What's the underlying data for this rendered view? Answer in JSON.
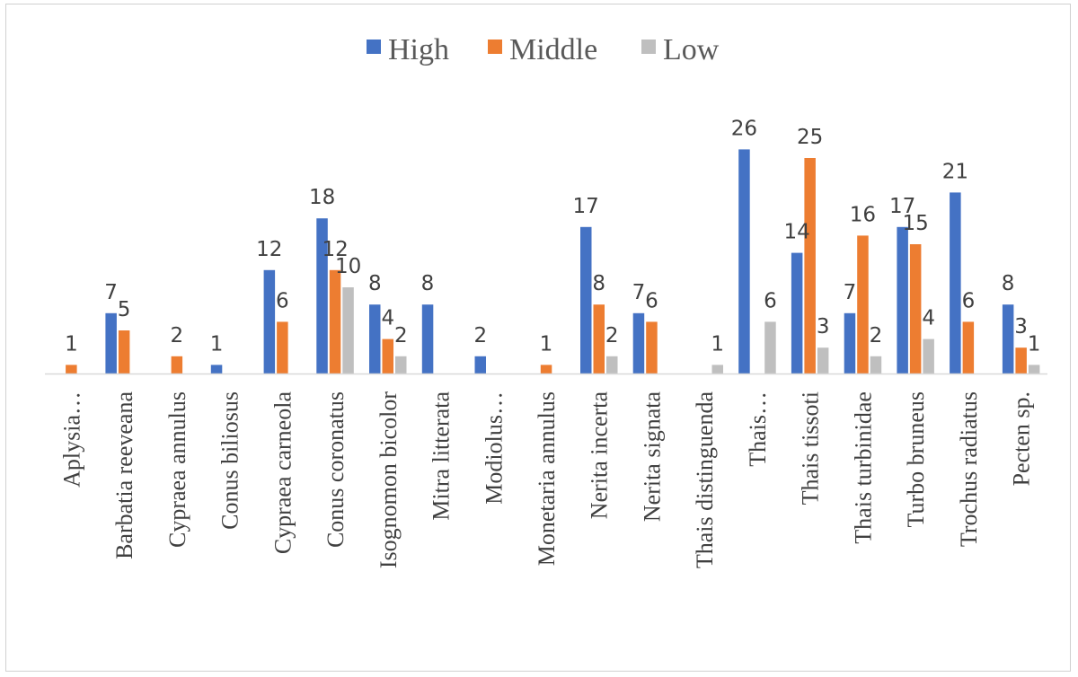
{
  "chart_data": {
    "type": "bar",
    "title": "",
    "xlabel": "",
    "ylabel": "",
    "ylim": [
      0,
      26
    ],
    "grid": false,
    "legend_position": "top",
    "categories": [
      "Aplysia…",
      "Barbatia reeveana",
      "Cypraea annulus",
      "Conus biliosus",
      "Cypraea carneola",
      "Conus coronatus",
      "Isognomon bicolor",
      "Mitra litterata",
      "Modiolus…",
      "Monetaria annulus",
      "Nerita incerta",
      "Nerita signata",
      "Thais distinguenda",
      "Thais…",
      "Thais tissoti",
      "Thais turbinidae",
      "Turbo bruneus",
      "Trochus radiatus",
      "Pecten sp."
    ],
    "series": [
      {
        "name": "High",
        "color": "#4472C4",
        "values": [
          0,
          7,
          0,
          1,
          12,
          18,
          8,
          8,
          2,
          0,
          17,
          7,
          0,
          26,
          14,
          7,
          17,
          21,
          8
        ]
      },
      {
        "name": "Middle",
        "color": "#ED7D31",
        "values": [
          1,
          5,
          2,
          0,
          6,
          12,
          4,
          0,
          0,
          1,
          8,
          6,
          0,
          0,
          25,
          16,
          15,
          6,
          3
        ]
      },
      {
        "name": "Low",
        "color": "#BFBFBF",
        "values": [
          0,
          0,
          0,
          0,
          0,
          10,
          2,
          0,
          0,
          0,
          2,
          0,
          1,
          6,
          3,
          2,
          4,
          0,
          1
        ]
      }
    ]
  }
}
